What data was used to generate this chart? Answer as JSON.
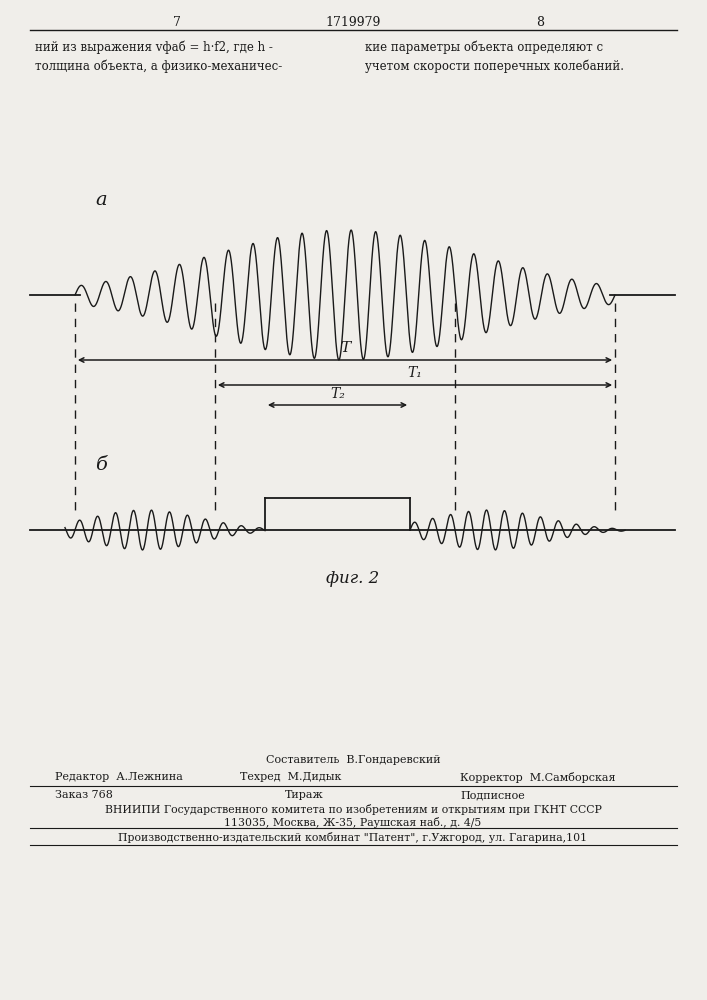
{
  "bg_color": "#f0eeea",
  "line_color": "#1a1a1a",
  "page_number_left": "7",
  "page_number_center": "1719979",
  "page_number_right": "8",
  "text_top_left": "ний из выражения vфаб = h·f2, где h -\nтолщина объекта, а физико-механичес-",
  "text_top_right": "кие параметры объекта определяют с\nучетом скорости поперечных колебаний.",
  "label_a": "а",
  "label_b": "б",
  "label_T": "T",
  "label_T1": "T₁",
  "label_T2": "T₂",
  "fig_caption": "фиг. 2",
  "footer_line1_center": "Составитель  В.Гондаревский",
  "footer_line2_left": "Редактор  А.Лежнина",
  "footer_line2_center": "Техред  М.Дидык",
  "footer_line2_right": "Корректор  М.Самборская",
  "footer_line3_left": "Заказ 768",
  "footer_line3_center": "Тираж",
  "footer_line3_right": "Подписное",
  "footer_line4": "ВНИИПИ Государственного комитета по изобретениям и открытиям при ГКНТ СССР",
  "footer_line5": "113035, Москва, Ж-35, Раушская наб., д. 4/5",
  "footer_line6": "Производственно-издательский комбинат \"Патент\", г.Ужгород, ул. Гагарина,101"
}
